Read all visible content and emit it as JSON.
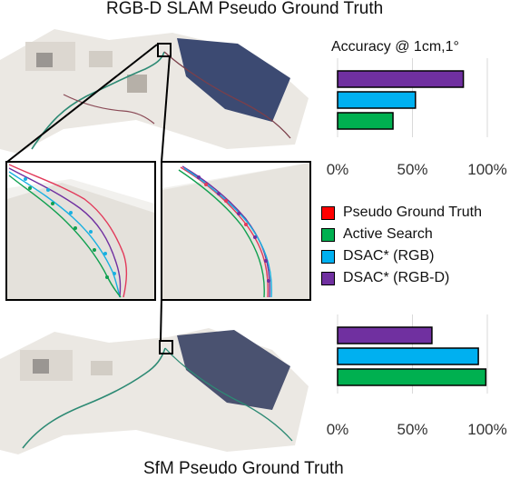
{
  "titles": {
    "top": "RGB-D SLAM Pseudo Ground Truth",
    "bottom": "SfM Pseudo Ground Truth"
  },
  "colors": {
    "pseudo_gt": "#ff0000",
    "active_search": "#00b050",
    "dsac_rgb": "#00b0f0",
    "dsac_rgbd": "#7030a0",
    "grid": "#d9d9d9"
  },
  "legend": [
    {
      "label": "Pseudo Ground Truth",
      "color": "#ff0000"
    },
    {
      "label": "Active Search",
      "color": "#00b050"
    },
    {
      "label": "DSAC* (RGB)",
      "color": "#00b0f0"
    },
    {
      "label": "DSAC* (RGB-D)",
      "color": "#7030a0"
    }
  ],
  "chart_data": [
    {
      "type": "bar",
      "orientation": "horizontal",
      "title": "Accuracy @ 1cm,1°",
      "categories": [
        "DSAC* (RGB-D)",
        "DSAC* (RGB)",
        "Active Search"
      ],
      "values": [
        84,
        52,
        37
      ],
      "unit": "%",
      "xlim": [
        0,
        100
      ],
      "xticks": [
        "0%",
        "50%",
        "100%"
      ],
      "grid": true
    },
    {
      "type": "bar",
      "orientation": "horizontal",
      "title": "",
      "categories": [
        "DSAC* (RGB-D)",
        "DSAC* (RGB)",
        "Active Search"
      ],
      "values": [
        63,
        94,
        99
      ],
      "unit": "%",
      "xlim": [
        0,
        100
      ],
      "xticks": [
        "0%",
        "50%",
        "100%"
      ],
      "grid": true
    }
  ]
}
